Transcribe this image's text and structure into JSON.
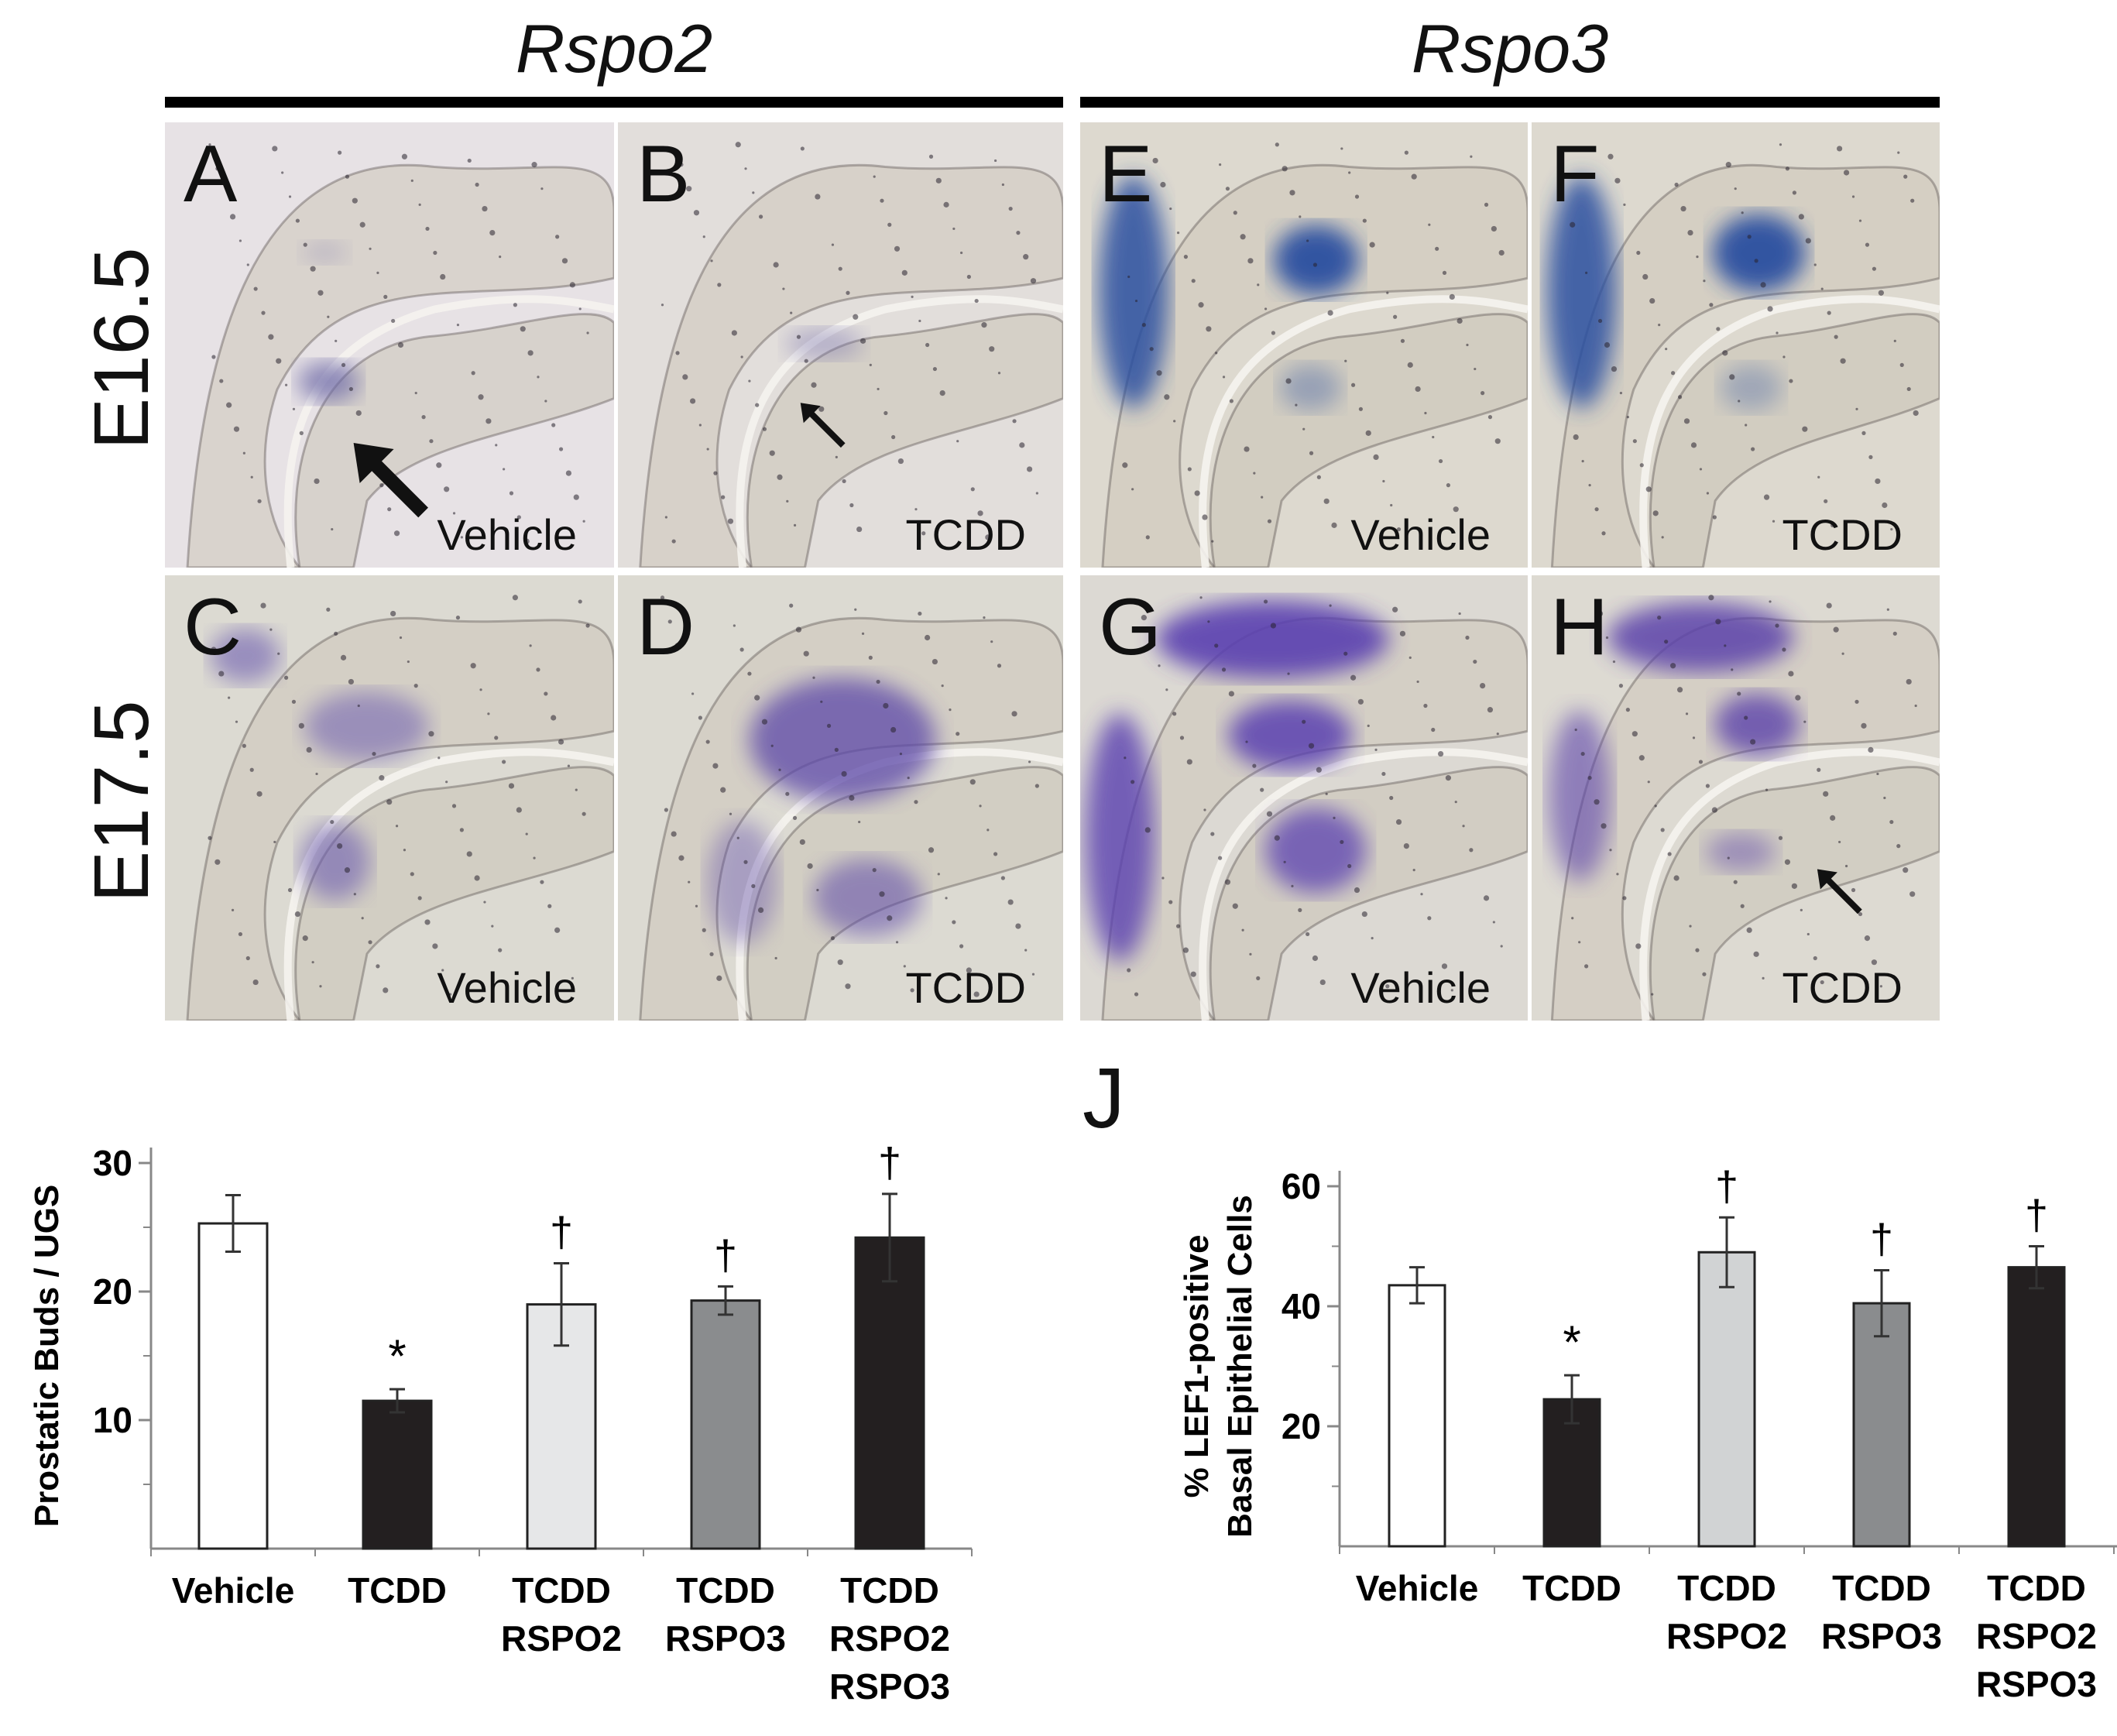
{
  "header": {
    "left_gene": "Rspo2",
    "right_gene": "Rspo3"
  },
  "rows": [
    {
      "stage": "E16.5"
    },
    {
      "stage": "E17.5"
    }
  ],
  "panels": [
    {
      "letter": "A",
      "treatment": "Vehicle"
    },
    {
      "letter": "B",
      "treatment": "TCDD"
    },
    {
      "letter": "E",
      "treatment": "Vehicle"
    },
    {
      "letter": "F",
      "treatment": "TCDD"
    },
    {
      "letter": "C",
      "treatment": "Vehicle"
    },
    {
      "letter": "D",
      "treatment": "TCDD"
    },
    {
      "letter": "G",
      "treatment": "Vehicle"
    },
    {
      "letter": "H",
      "treatment": "TCDD"
    }
  ],
  "panel_J": {
    "letter": "J"
  },
  "chart_data": [
    {
      "type": "bar",
      "ylabel": "Prostatic Buds / UGS",
      "ylim": [
        0,
        30
      ],
      "yticks": [
        10,
        20,
        30
      ],
      "categories": [
        [
          "Vehicle"
        ],
        [
          "TCDD"
        ],
        [
          "TCDD",
          "RSPO2"
        ],
        [
          "TCDD",
          "RSPO3"
        ],
        [
          "TCDD",
          "RSPO2",
          "RSPO3"
        ]
      ],
      "values": [
        25.3,
        11.5,
        19.0,
        19.3,
        24.2
      ],
      "errors": [
        2.2,
        0.9,
        3.2,
        1.1,
        3.4
      ],
      "bar_colors": [
        "#ffffff",
        "#231f20",
        "#e6e7e8",
        "#8a8c8e",
        "#231f20"
      ],
      "markers": [
        "",
        "*",
        "†",
        "†",
        "†"
      ]
    },
    {
      "type": "bar",
      "ylabel_lines": [
        "% LEF1-positive",
        "Basal Epithelial Cells"
      ],
      "ylim": [
        0,
        60
      ],
      "yticks": [
        20,
        40,
        60
      ],
      "categories": [
        [
          "Vehicle"
        ],
        [
          "TCDD"
        ],
        [
          "TCDD",
          "RSPO2"
        ],
        [
          "TCDD",
          "RSPO3"
        ],
        [
          "TCDD",
          "RSPO2",
          "RSPO3"
        ]
      ],
      "values": [
        43.5,
        24.5,
        49.0,
        40.5,
        46.5
      ],
      "errors": [
        3.0,
        4.0,
        5.8,
        5.5,
        3.5
      ],
      "bar_colors": [
        "#ffffff",
        "#231f20",
        "#d1d3d4",
        "#8a8c8e",
        "#231f20"
      ],
      "markers": [
        "",
        "*",
        "†",
        "†",
        "†"
      ]
    }
  ]
}
